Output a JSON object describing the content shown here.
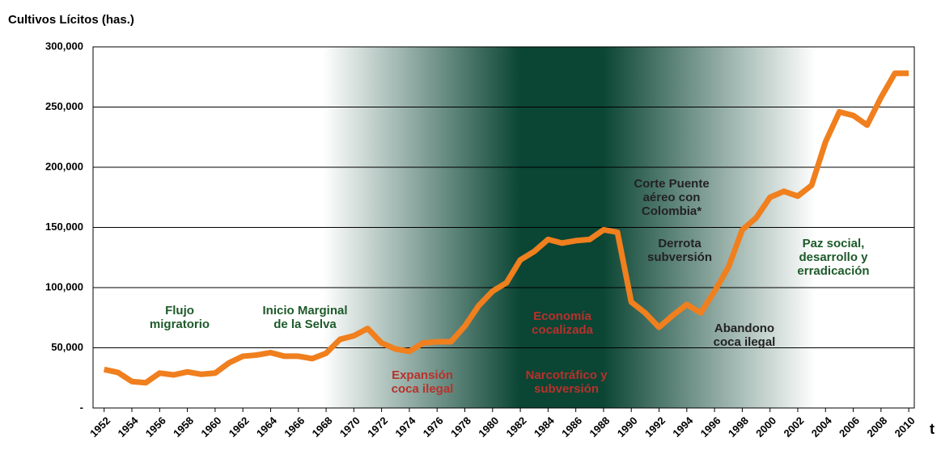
{
  "chart_data": {
    "type": "line",
    "title": "Cultivos Lícitos (has.)",
    "x_label": "t",
    "x": [
      1952,
      1953,
      1954,
      1955,
      1956,
      1957,
      1958,
      1959,
      1960,
      1961,
      1962,
      1963,
      1964,
      1965,
      1966,
      1967,
      1968,
      1969,
      1970,
      1971,
      1972,
      1973,
      1974,
      1975,
      1976,
      1977,
      1978,
      1979,
      1980,
      1981,
      1982,
      1983,
      1984,
      1985,
      1986,
      1987,
      1988,
      1989,
      1990,
      1991,
      1992,
      1993,
      1994,
      1995,
      1996,
      1997,
      1998,
      1999,
      2000,
      2001,
      2002,
      2003,
      2004,
      2005,
      2006,
      2007,
      2008,
      2009,
      2010
    ],
    "series": [
      {
        "name": "Cultivos Lícitos",
        "color": "#f07f1e",
        "values": [
          32000,
          29500,
          22000,
          21000,
          29000,
          27500,
          30000,
          28000,
          29000,
          37500,
          43000,
          44000,
          46000,
          43000,
          43000,
          41000,
          45500,
          57000,
          60000,
          66000,
          54000,
          49000,
          47000,
          54000,
          55000,
          55000,
          68000,
          85000,
          97000,
          104000,
          123000,
          130000,
          140000,
          137000,
          139000,
          140000,
          148000,
          146000,
          88000,
          79000,
          67000,
          77000,
          86000,
          79000,
          97000,
          117000,
          148000,
          158000,
          175000,
          180000,
          176000,
          185000,
          221000,
          246000,
          243000,
          235000,
          258000,
          278000,
          278000
        ]
      }
    ],
    "xlim": [
      1951.2,
      2010.4
    ],
    "xticks": [
      1952,
      1954,
      1956,
      1958,
      1960,
      1962,
      1964,
      1966,
      1968,
      1970,
      1972,
      1974,
      1976,
      1978,
      1980,
      1982,
      1984,
      1986,
      1988,
      1990,
      1992,
      1994,
      1996,
      1998,
      2000,
      2002,
      2004,
      2006,
      2008,
      2010
    ],
    "ylim": [
      0,
      300000
    ],
    "yticks": [
      {
        "value": 0,
        "label": "-"
      },
      {
        "value": 50000,
        "label": "50,000"
      },
      {
        "value": 100000,
        "label": "100,000"
      },
      {
        "value": 150000,
        "label": "150,000"
      },
      {
        "value": 200000,
        "label": "200,000"
      },
      {
        "value": 250000,
        "label": "250,000"
      },
      {
        "value": 300000,
        "label": "300,000"
      }
    ],
    "grid": true,
    "annotations": [
      {
        "lines": [
          "Flujo",
          "migratorio"
        ],
        "color": "#1e5a2a"
      },
      {
        "lines": [
          "Inicio Marginal",
          "de la Selva"
        ],
        "color": "#1e5a2a"
      },
      {
        "lines": [
          "Expansión",
          "coca ilegal"
        ],
        "color": "#b8312b"
      },
      {
        "lines": [
          "Economía",
          "cocalizada"
        ],
        "color": "#b8312b"
      },
      {
        "lines": [
          "Narcotráfico y",
          "subversión"
        ],
        "color": "#b8312b"
      },
      {
        "lines": [
          "Corte Puente",
          "aéreo con",
          "Colombia*"
        ],
        "color": "#222222"
      },
      {
        "lines": [
          "Derrota",
          "subversión"
        ],
        "color": "#222222"
      },
      {
        "lines": [
          "Abandono",
          "coca ilegal"
        ],
        "color": "#222222"
      },
      {
        "lines": [
          "Paz social,",
          "desarrollo y",
          "erradicación"
        ],
        "color": "#1e5a2a"
      }
    ]
  }
}
